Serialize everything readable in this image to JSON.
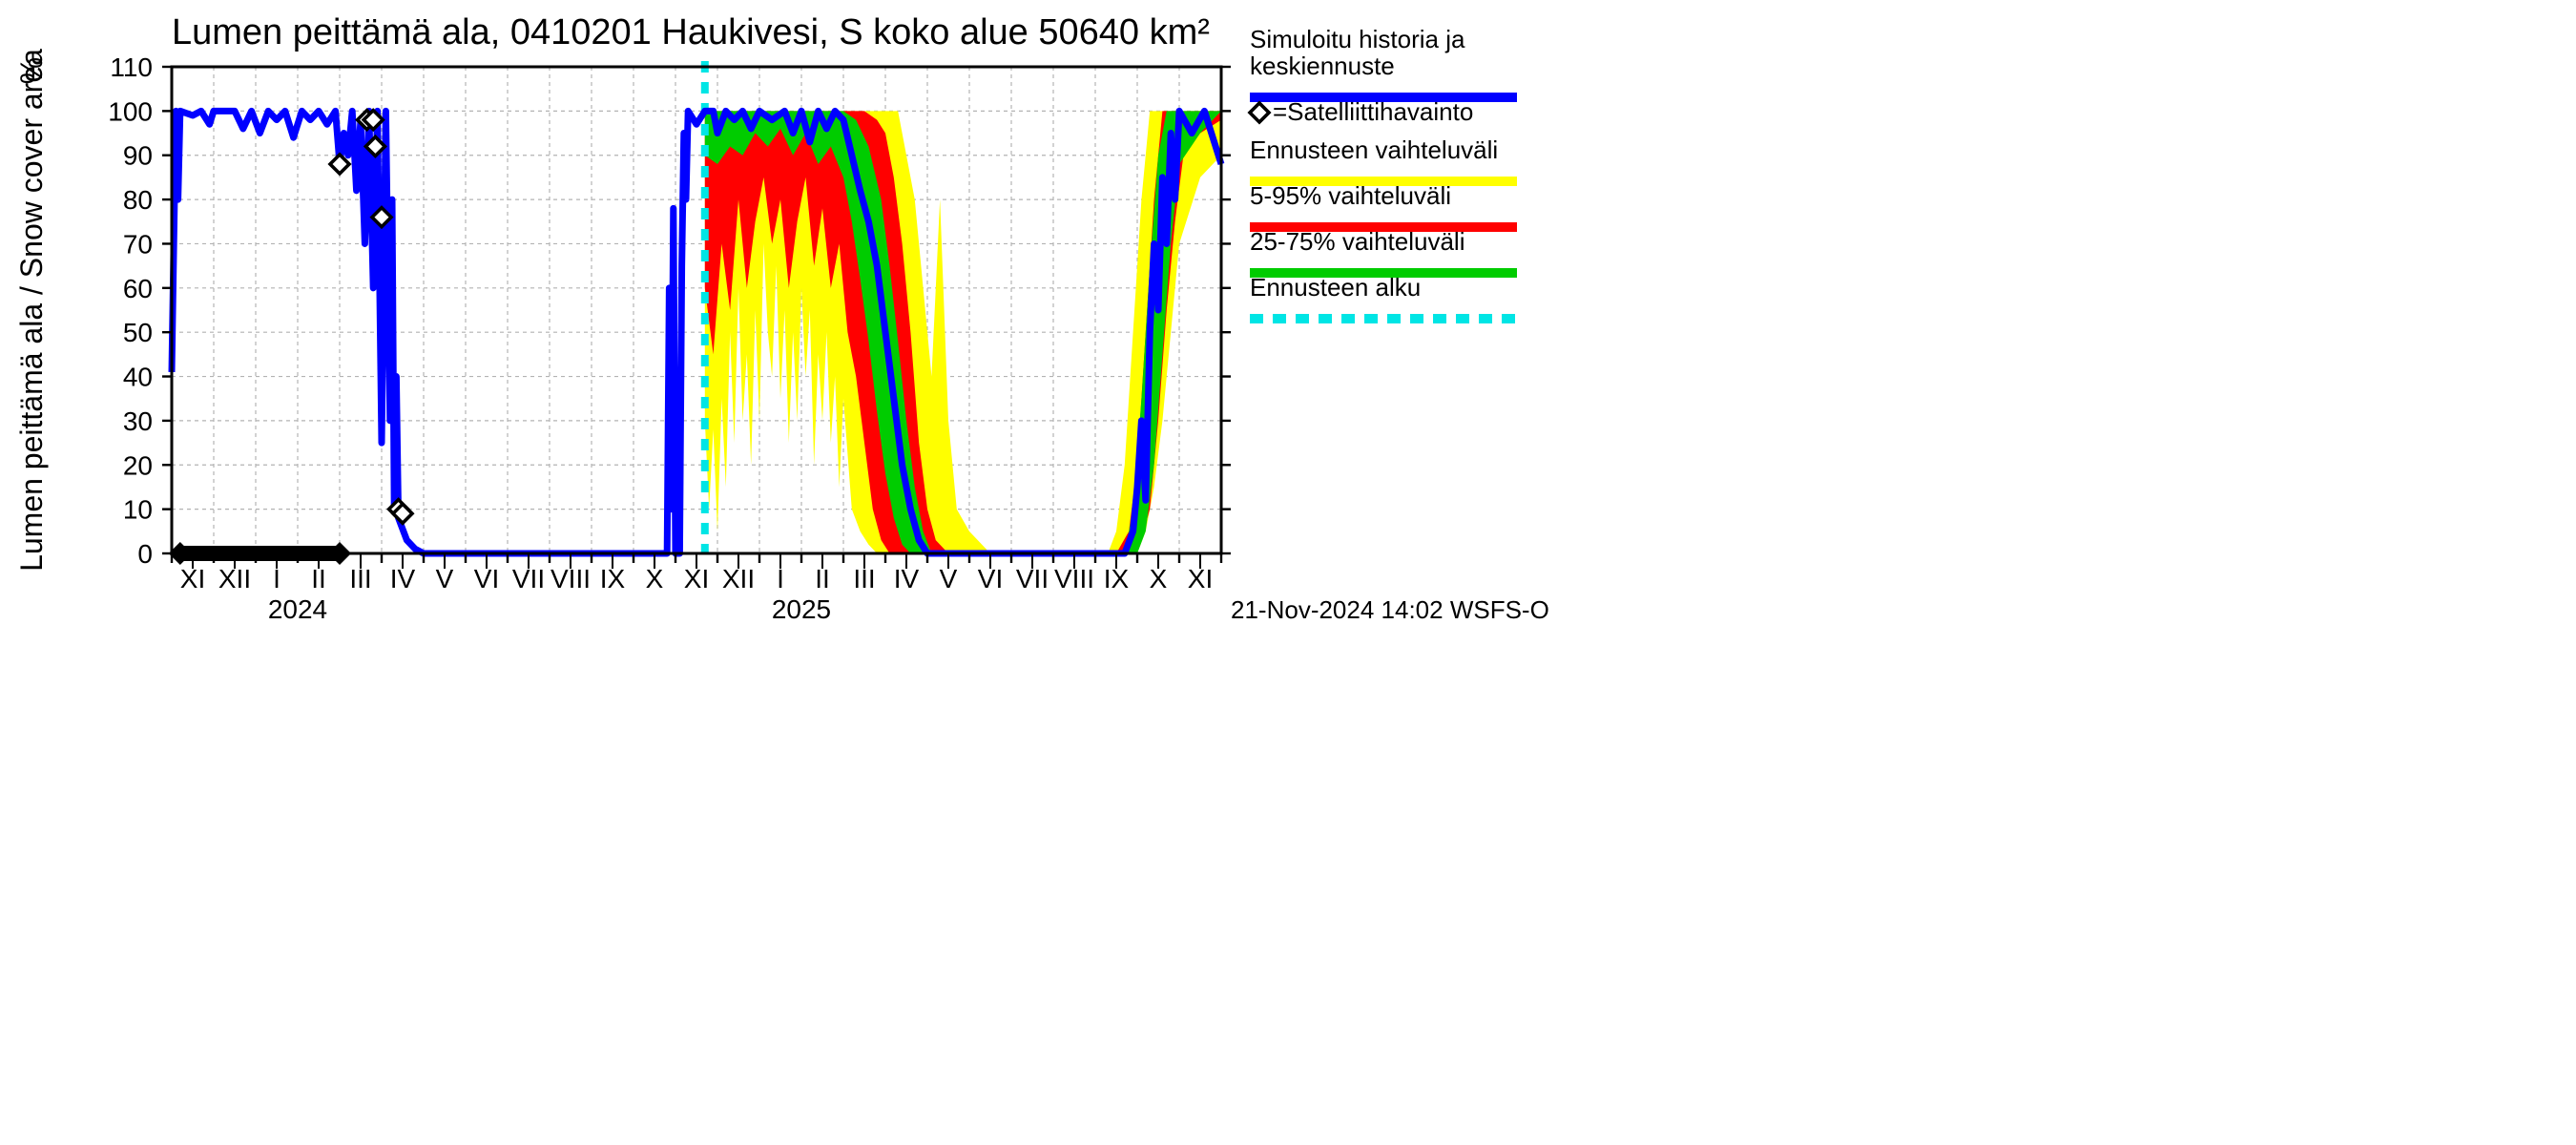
{
  "title": "Lumen peittämä ala, 0410201 Haukivesi, S koko alue 50640 km²",
  "y_axis": {
    "label_line1": "Lumen peittämä ala / Snow cover area",
    "label_line2": "%",
    "min": 0,
    "max": 110,
    "tick_step": 10,
    "ticks": [
      0,
      10,
      20,
      30,
      40,
      50,
      60,
      70,
      80,
      90,
      100,
      110
    ]
  },
  "x_axis": {
    "months": [
      "XI",
      "XII",
      "I",
      "II",
      "III",
      "IV",
      "V",
      "VI",
      "VII",
      "VIII",
      "IX",
      "X",
      "XI",
      "XII",
      "I",
      "II",
      "III",
      "IV",
      "V",
      "VI",
      "VII",
      "VIII",
      "IX",
      "X",
      "XI"
    ],
    "year_labels": [
      {
        "text": "2024",
        "at_month_index": 3
      },
      {
        "text": "2025",
        "at_month_index": 15
      }
    ]
  },
  "colors": {
    "background": "#ffffff",
    "grid": "#b3b3b3",
    "axis": "#000000",
    "sim_line": "#0000ff",
    "sat_marker_stroke": "#000000",
    "sat_marker_fill": "#ffffff",
    "yellow": "#ffff00",
    "red": "#ff0000",
    "green": "#00cc00",
    "cyan": "#00e5e5",
    "obs_black": "#000000"
  },
  "legend": {
    "items": [
      {
        "type": "line",
        "color": "#0000ff",
        "text1": "Simuloitu historia ja",
        "text2": "keskiennuste"
      },
      {
        "type": "marker",
        "text": "=Satelliittihavainto"
      },
      {
        "type": "line",
        "color": "#ffff00",
        "text": "Ennusteen vaihteluväli"
      },
      {
        "type": "line",
        "color": "#ff0000",
        "text": "5-95% vaihteluväli"
      },
      {
        "type": "line",
        "color": "#00cc00",
        "text": "25-75% vaihteluväli"
      },
      {
        "type": "dash",
        "color": "#00e5e5",
        "text": "Ennusteen alku"
      }
    ]
  },
  "footer": "21-Nov-2024 14:02 WSFS-O",
  "forecast_start_month_index": 12.7,
  "sim_history": [
    [
      0,
      41
    ],
    [
      0.1,
      100
    ],
    [
      0.15,
      80
    ],
    [
      0.2,
      100
    ],
    [
      0.5,
      99
    ],
    [
      0.7,
      100
    ],
    [
      0.9,
      97
    ],
    [
      1.0,
      100
    ],
    [
      1.5,
      100
    ],
    [
      1.7,
      96
    ],
    [
      1.9,
      100
    ],
    [
      2.1,
      95
    ],
    [
      2.3,
      100
    ],
    [
      2.5,
      98
    ],
    [
      2.7,
      100
    ],
    [
      2.9,
      94
    ],
    [
      3.1,
      100
    ],
    [
      3.3,
      98
    ],
    [
      3.5,
      100
    ],
    [
      3.7,
      97
    ],
    [
      3.9,
      100
    ],
    [
      4.0,
      88
    ],
    [
      4.1,
      95
    ],
    [
      4.2,
      90
    ],
    [
      4.3,
      100
    ],
    [
      4.4,
      82
    ],
    [
      4.5,
      98
    ],
    [
      4.6,
      70
    ],
    [
      4.7,
      100
    ],
    [
      4.8,
      60
    ],
    [
      4.9,
      100
    ],
    [
      5.0,
      25
    ],
    [
      5.1,
      100
    ],
    [
      5.2,
      30
    ],
    [
      5.25,
      80
    ],
    [
      5.3,
      10
    ],
    [
      5.35,
      40
    ],
    [
      5.4,
      8
    ],
    [
      5.6,
      3
    ],
    [
      5.8,
      1
    ],
    [
      6.0,
      0
    ],
    [
      6.5,
      0
    ],
    [
      7,
      0
    ],
    [
      8,
      0
    ],
    [
      9,
      0
    ],
    [
      10,
      0
    ],
    [
      11,
      0
    ],
    [
      11.8,
      0
    ],
    [
      11.85,
      60
    ],
    [
      11.9,
      10
    ],
    [
      11.95,
      78
    ],
    [
      12.0,
      0
    ],
    [
      12.1,
      0
    ],
    [
      12.15,
      65
    ],
    [
      12.2,
      95
    ],
    [
      12.25,
      80
    ],
    [
      12.3,
      100
    ],
    [
      12.5,
      97
    ],
    [
      12.7,
      100
    ]
  ],
  "sim_forecast": [
    [
      12.7,
      100
    ],
    [
      12.9,
      100
    ],
    [
      13.0,
      95
    ],
    [
      13.2,
      100
    ],
    [
      13.4,
      98
    ],
    [
      13.6,
      100
    ],
    [
      13.8,
      96
    ],
    [
      14.0,
      100
    ],
    [
      14.3,
      98
    ],
    [
      14.6,
      100
    ],
    [
      14.8,
      95
    ],
    [
      15.0,
      100
    ],
    [
      15.2,
      93
    ],
    [
      15.4,
      100
    ],
    [
      15.6,
      96
    ],
    [
      15.8,
      100
    ],
    [
      16.0,
      98
    ],
    [
      16.2,
      90
    ],
    [
      16.4,
      82
    ],
    [
      16.6,
      75
    ],
    [
      16.8,
      65
    ],
    [
      17.0,
      50
    ],
    [
      17.2,
      35
    ],
    [
      17.4,
      20
    ],
    [
      17.6,
      10
    ],
    [
      17.8,
      3
    ],
    [
      18.0,
      0
    ],
    [
      18.5,
      0
    ],
    [
      19,
      0
    ],
    [
      20,
      0
    ],
    [
      21,
      0
    ],
    [
      22,
      0
    ],
    [
      22.5,
      0
    ],
    [
      22.7,
      0
    ],
    [
      22.9,
      5
    ],
    [
      23.0,
      15
    ],
    [
      23.1,
      30
    ],
    [
      23.2,
      12
    ],
    [
      23.3,
      50
    ],
    [
      23.4,
      70
    ],
    [
      23.5,
      55
    ],
    [
      23.6,
      85
    ],
    [
      23.7,
      70
    ],
    [
      23.8,
      95
    ],
    [
      23.9,
      80
    ],
    [
      24.0,
      100
    ],
    [
      24.3,
      95
    ],
    [
      24.6,
      100
    ],
    [
      25,
      88
    ]
  ],
  "yellow_band": {
    "upper": [
      [
        12.7,
        100
      ],
      [
        13,
        100
      ],
      [
        13.5,
        100
      ],
      [
        14,
        100
      ],
      [
        14.5,
        100
      ],
      [
        15,
        100
      ],
      [
        15.5,
        100
      ],
      [
        16,
        100
      ],
      [
        16.5,
        100
      ],
      [
        17,
        100
      ],
      [
        17.3,
        100
      ],
      [
        17.5,
        90
      ],
      [
        17.7,
        80
      ],
      [
        17.9,
        60
      ],
      [
        18.1,
        40
      ],
      [
        18.3,
        80
      ],
      [
        18.5,
        30
      ],
      [
        18.7,
        10
      ],
      [
        19,
        5
      ],
      [
        19.5,
        0
      ],
      [
        20,
        0
      ],
      [
        21,
        0
      ],
      [
        22,
        0
      ],
      [
        22.3,
        0
      ],
      [
        22.5,
        5
      ],
      [
        22.7,
        20
      ],
      [
        22.9,
        50
      ],
      [
        23.1,
        80
      ],
      [
        23.3,
        100
      ],
      [
        23.5,
        100
      ],
      [
        24,
        100
      ],
      [
        25,
        100
      ]
    ],
    "lower": [
      [
        12.7,
        30
      ],
      [
        12.8,
        10
      ],
      [
        12.9,
        28
      ],
      [
        13,
        5
      ],
      [
        13.1,
        35
      ],
      [
        13.2,
        15
      ],
      [
        13.3,
        50
      ],
      [
        13.4,
        25
      ],
      [
        13.5,
        60
      ],
      [
        13.6,
        30
      ],
      [
        13.7,
        45
      ],
      [
        13.8,
        20
      ],
      [
        13.9,
        55
      ],
      [
        14,
        30
      ],
      [
        14.1,
        70
      ],
      [
        14.2,
        50
      ],
      [
        14.3,
        40
      ],
      [
        14.4,
        65
      ],
      [
        14.5,
        35
      ],
      [
        14.6,
        55
      ],
      [
        14.7,
        25
      ],
      [
        14.8,
        50
      ],
      [
        14.9,
        30
      ],
      [
        15,
        60
      ],
      [
        15.1,
        40
      ],
      [
        15.2,
        55
      ],
      [
        15.3,
        20
      ],
      [
        15.4,
        45
      ],
      [
        15.5,
        30
      ],
      [
        15.6,
        50
      ],
      [
        15.7,
        25
      ],
      [
        15.8,
        40
      ],
      [
        15.9,
        15
      ],
      [
        16,
        35
      ],
      [
        16.2,
        10
      ],
      [
        16.4,
        5
      ],
      [
        16.6,
        2
      ],
      [
        16.8,
        0
      ],
      [
        17,
        0
      ],
      [
        18,
        0
      ],
      [
        19,
        0
      ],
      [
        20,
        0
      ],
      [
        21,
        0
      ],
      [
        22,
        0
      ],
      [
        22.5,
        0
      ],
      [
        23,
        0
      ],
      [
        23.2,
        5
      ],
      [
        23.4,
        15
      ],
      [
        23.6,
        30
      ],
      [
        23.8,
        50
      ],
      [
        24,
        70
      ],
      [
        24.5,
        85
      ],
      [
        25,
        90
      ]
    ]
  },
  "red_band": {
    "upper": [
      [
        12.7,
        100
      ],
      [
        13,
        100
      ],
      [
        13.5,
        100
      ],
      [
        14,
        100
      ],
      [
        14.5,
        100
      ],
      [
        15,
        100
      ],
      [
        15.5,
        100
      ],
      [
        16,
        100
      ],
      [
        16.5,
        100
      ],
      [
        16.8,
        98
      ],
      [
        17,
        95
      ],
      [
        17.2,
        85
      ],
      [
        17.4,
        70
      ],
      [
        17.6,
        50
      ],
      [
        17.8,
        25
      ],
      [
        18,
        10
      ],
      [
        18.2,
        3
      ],
      [
        18.5,
        0
      ],
      [
        19,
        0
      ],
      [
        20,
        0
      ],
      [
        21,
        0
      ],
      [
        22,
        0
      ],
      [
        22.5,
        0
      ],
      [
        22.8,
        5
      ],
      [
        23,
        20
      ],
      [
        23.2,
        50
      ],
      [
        23.4,
        80
      ],
      [
        23.6,
        100
      ],
      [
        24,
        100
      ],
      [
        25,
        100
      ]
    ],
    "lower": [
      [
        12.7,
        60
      ],
      [
        12.9,
        45
      ],
      [
        13.1,
        70
      ],
      [
        13.3,
        55
      ],
      [
        13.5,
        80
      ],
      [
        13.7,
        60
      ],
      [
        13.9,
        75
      ],
      [
        14.1,
        85
      ],
      [
        14.3,
        70
      ],
      [
        14.5,
        80
      ],
      [
        14.7,
        60
      ],
      [
        14.9,
        75
      ],
      [
        15.1,
        85
      ],
      [
        15.3,
        65
      ],
      [
        15.5,
        78
      ],
      [
        15.7,
        60
      ],
      [
        15.9,
        70
      ],
      [
        16.1,
        50
      ],
      [
        16.3,
        40
      ],
      [
        16.5,
        25
      ],
      [
        16.7,
        10
      ],
      [
        16.9,
        3
      ],
      [
        17.1,
        0
      ],
      [
        18,
        0
      ],
      [
        19,
        0
      ],
      [
        20,
        0
      ],
      [
        21,
        0
      ],
      [
        22,
        0
      ],
      [
        23,
        0
      ],
      [
        23.3,
        10
      ],
      [
        23.5,
        30
      ],
      [
        23.7,
        55
      ],
      [
        23.9,
        75
      ],
      [
        24.1,
        90
      ],
      [
        24.5,
        95
      ],
      [
        25,
        98
      ]
    ]
  },
  "green_band": {
    "upper": [
      [
        12.7,
        100
      ],
      [
        13,
        100
      ],
      [
        13.5,
        100
      ],
      [
        14,
        100
      ],
      [
        14.5,
        100
      ],
      [
        15,
        100
      ],
      [
        15.5,
        100
      ],
      [
        16,
        100
      ],
      [
        16.3,
        98
      ],
      [
        16.6,
        92
      ],
      [
        16.9,
        80
      ],
      [
        17.1,
        65
      ],
      [
        17.3,
        48
      ],
      [
        17.5,
        30
      ],
      [
        17.7,
        15
      ],
      [
        17.9,
        5
      ],
      [
        18.1,
        0
      ],
      [
        19,
        0
      ],
      [
        20,
        0
      ],
      [
        21,
        0
      ],
      [
        22,
        0
      ],
      [
        22.7,
        0
      ],
      [
        22.9,
        10
      ],
      [
        23.1,
        35
      ],
      [
        23.3,
        65
      ],
      [
        23.5,
        90
      ],
      [
        23.7,
        100
      ],
      [
        24,
        100
      ],
      [
        25,
        100
      ]
    ],
    "lower": [
      [
        12.7,
        90
      ],
      [
        13,
        88
      ],
      [
        13.3,
        92
      ],
      [
        13.6,
        90
      ],
      [
        13.9,
        95
      ],
      [
        14.2,
        92
      ],
      [
        14.5,
        96
      ],
      [
        14.8,
        90
      ],
      [
        15.1,
        95
      ],
      [
        15.4,
        88
      ],
      [
        15.7,
        92
      ],
      [
        16,
        85
      ],
      [
        16.2,
        75
      ],
      [
        16.4,
        62
      ],
      [
        16.6,
        48
      ],
      [
        16.8,
        32
      ],
      [
        17,
        18
      ],
      [
        17.2,
        8
      ],
      [
        17.4,
        2
      ],
      [
        17.6,
        0
      ],
      [
        18,
        0
      ],
      [
        19,
        0
      ],
      [
        20,
        0
      ],
      [
        21,
        0
      ],
      [
        22,
        0
      ],
      [
        23,
        0
      ],
      [
        23.2,
        5
      ],
      [
        23.4,
        20
      ],
      [
        23.6,
        45
      ],
      [
        23.8,
        70
      ],
      [
        24,
        88
      ],
      [
        24.5,
        95
      ],
      [
        25,
        100
      ]
    ]
  },
  "sat_markers": [
    {
      "x": 4.0,
      "y": 88
    },
    {
      "x": 4.65,
      "y": 98
    },
    {
      "x": 4.8,
      "y": 98
    },
    {
      "x": 4.85,
      "y": 92
    },
    {
      "x": 5.0,
      "y": 76
    },
    {
      "x": 5.4,
      "y": 10
    },
    {
      "x": 5.5,
      "y": 9
    }
  ],
  "obs_span": {
    "start": 0.2,
    "end": 4.0
  }
}
